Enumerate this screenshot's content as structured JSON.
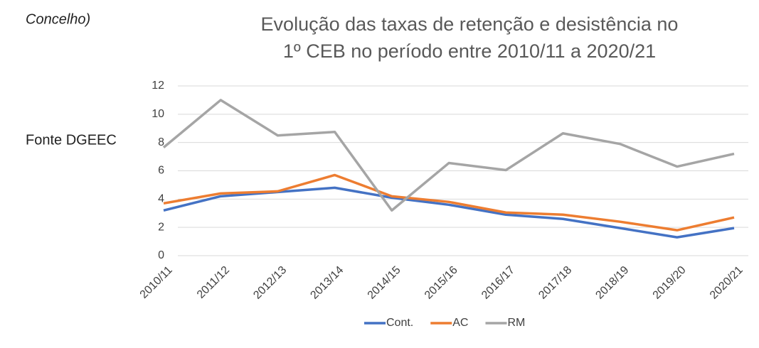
{
  "page": {
    "heading": "Concelho)",
    "source": "Fonte DGEEC"
  },
  "chart_data": {
    "type": "line",
    "title": [
      "Evolução das taxas de retenção e desistência no",
      "1º CEB no período entre 2010/11 a 2020/21"
    ],
    "categories": [
      "2010/11",
      "2011/12",
      "2012/13",
      "2013/14",
      "2014/15",
      "2015/16",
      "2016/17",
      "2017/18",
      "2018/19",
      "2019/20",
      "2020/21"
    ],
    "series": [
      {
        "name": "Cont.",
        "color": "#4472c4",
        "values": [
          3.2,
          4.2,
          4.5,
          4.8,
          4.1,
          3.6,
          2.9,
          2.6,
          1.95,
          1.3,
          1.95
        ]
      },
      {
        "name": "AC",
        "color": "#ed7d31",
        "values": [
          3.7,
          4.4,
          4.55,
          5.7,
          4.2,
          3.8,
          3.05,
          2.9,
          2.4,
          1.8,
          2.7
        ]
      },
      {
        "name": "RM",
        "color": "#a5a5a5",
        "values": [
          7.65,
          11.0,
          8.5,
          8.75,
          3.2,
          6.55,
          6.05,
          8.65,
          7.9,
          6.3,
          7.2
        ]
      }
    ],
    "ylim": [
      0,
      12
    ],
    "yticks": [
      0,
      2,
      4,
      6,
      8,
      10,
      12
    ],
    "grid": true,
    "legend": "bottom"
  }
}
